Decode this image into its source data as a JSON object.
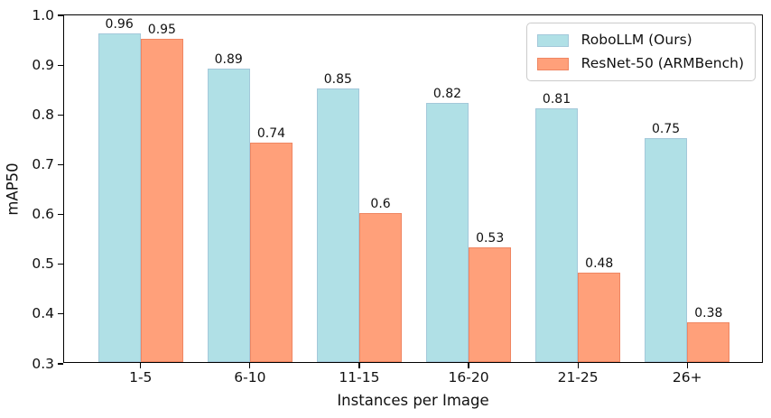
{
  "chart_data": {
    "type": "bar",
    "title": "",
    "categories": [
      "1-5",
      "6-10",
      "11-15",
      "16-20",
      "21-25",
      "26+"
    ],
    "series": [
      {
        "name": "RoboLLM (Ours)",
        "color": "#b0e0e6",
        "edge_color": "#a3c8da",
        "values": [
          0.96,
          0.89,
          0.85,
          0.82,
          0.81,
          0.75
        ],
        "value_labels": [
          "0.96",
          "0.89",
          "0.85",
          "0.82",
          "0.81",
          "0.75"
        ]
      },
      {
        "name": "ResNet-50 (ARMBench)",
        "color": "#ffa07a",
        "edge_color": "#ef8662",
        "values": [
          0.95,
          0.74,
          0.6,
          0.53,
          0.48,
          0.38
        ],
        "value_labels": [
          "0.95",
          "0.74",
          "0.6",
          "0.53",
          "0.48",
          "0.38"
        ]
      }
    ],
    "xlabel": "Instances per Image",
    "ylabel": "mAP50",
    "ylim": [
      0.3,
      1.0
    ],
    "yticks": [
      0.3,
      0.4,
      0.5,
      0.6,
      0.7,
      0.8,
      0.9,
      1.0
    ],
    "ytick_labels": [
      "0.3",
      "0.4",
      "0.5",
      "0.6",
      "0.7",
      "0.8",
      "0.9",
      "1.0"
    ],
    "grid": false,
    "legend_position": "upper right",
    "axis_color": "#000000",
    "text_color": "#111111"
  }
}
